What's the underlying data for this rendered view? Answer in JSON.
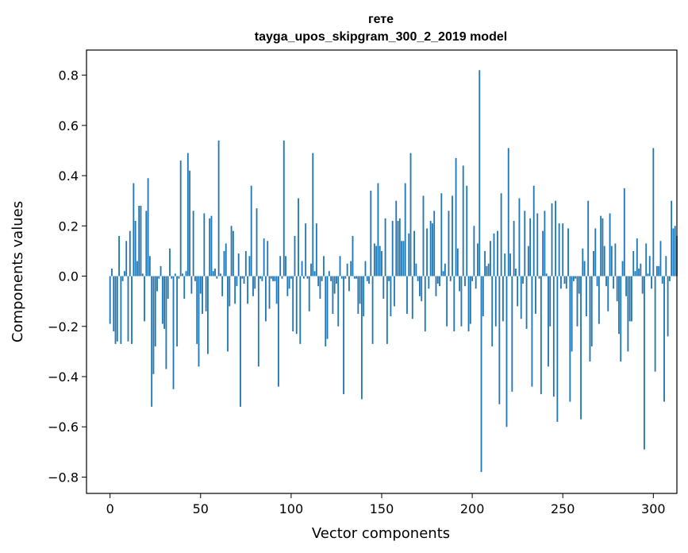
{
  "chart_data": {
    "type": "bar",
    "title": "гете",
    "subtitle": "tayga_upos_skipgram_300_2_2019 model",
    "xlabel": "Vector components",
    "ylabel": "Components values",
    "xlim": [
      -13,
      313
    ],
    "ylim": [
      -0.865,
      0.9
    ],
    "xticks": [
      0,
      50,
      100,
      150,
      200,
      250,
      300
    ],
    "yticks": [
      -0.8,
      -0.6,
      -0.4,
      -0.2,
      0.0,
      0.2,
      0.4,
      0.6,
      0.8
    ],
    "ytick_labels": [
      "−0.8",
      "−0.6",
      "−0.4",
      "−0.2",
      "0.0",
      "0.2",
      "0.4",
      "0.6",
      "0.8"
    ],
    "xtick_labels": [
      "0",
      "50",
      "100",
      "150",
      "200",
      "250",
      "300"
    ],
    "bar_color": "#1f77b4",
    "values": [
      -0.19,
      0.03,
      -0.22,
      -0.27,
      -0.26,
      0.16,
      -0.27,
      -0.02,
      0.02,
      0.14,
      -0.26,
      0.18,
      -0.27,
      0.37,
      0.22,
      0.06,
      0.28,
      0.28,
      0.01,
      -0.18,
      0.26,
      0.39,
      0.08,
      -0.52,
      -0.39,
      -0.28,
      -0.06,
      -0.01,
      0.04,
      -0.19,
      -0.21,
      -0.37,
      -0.09,
      0.11,
      -0.01,
      -0.45,
      0.01,
      -0.28,
      -0.01,
      0.46,
      0.01,
      -0.09,
      0.02,
      0.49,
      0.42,
      -0.07,
      0.26,
      -0.02,
      -0.27,
      -0.36,
      -0.07,
      -0.15,
      0.25,
      -0.14,
      -0.31,
      0.23,
      0.24,
      0.02,
      0.03,
      -0.01,
      0.54,
      0.01,
      -0.08,
      0.1,
      0.13,
      -0.3,
      -0.12,
      0.2,
      0.18,
      -0.11,
      -0.04,
      0.09,
      -0.52,
      -0.01,
      -0.03,
      0.1,
      -0.11,
      0.08,
      0.36,
      -0.08,
      -0.05,
      0.27,
      -0.36,
      -0.01,
      -0.02,
      0.15,
      -0.18,
      0.14,
      -0.13,
      -0.01,
      -0.02,
      -0.02,
      -0.11,
      -0.44,
      0.08,
      -0.01,
      0.54,
      0.08,
      -0.08,
      -0.05,
      -0.01,
      -0.22,
      0.16,
      -0.23,
      0.31,
      -0.27,
      0.06,
      -0.01,
      0.21,
      -0.01,
      -0.14,
      0.05,
      0.49,
      0.02,
      0.21,
      -0.04,
      -0.09,
      -0.02,
      0.08,
      -0.28,
      -0.25,
      0.02,
      -0.02,
      -0.15,
      -0.07,
      -0.03,
      -0.2,
      0.08,
      -0.01,
      -0.47,
      -0.01,
      0.05,
      -0.06,
      0.06,
      0.16,
      -0.01,
      -0.01,
      -0.15,
      -0.11,
      -0.49,
      -0.16,
      0.06,
      -0.02,
      -0.03,
      0.34,
      -0.27,
      0.13,
      0.12,
      0.37,
      0.12,
      0.1,
      -0.09,
      0.23,
      -0.27,
      -0.02,
      -0.16,
      0.22,
      -0.12,
      0.3,
      0.22,
      0.23,
      0.14,
      0.14,
      0.37,
      -0.15,
      0.17,
      0.49,
      -0.17,
      0.18,
      0.05,
      -0.02,
      -0.08,
      -0.1,
      0.32,
      -0.22,
      0.19,
      -0.05,
      0.22,
      0.21,
      0.26,
      -0.08,
      -0.03,
      -0.04,
      0.33,
      0.02,
      0.05,
      -0.2,
      0.26,
      -0.02,
      0.32,
      -0.22,
      0.47,
      0.11,
      -0.06,
      -0.2,
      0.44,
      -0.04,
      0.36,
      -0.22,
      -0.19,
      -0.02,
      0.2,
      -0.05,
      0.13,
      0.82,
      -0.78,
      -0.16,
      0.1,
      0.04,
      0.05,
      0.14,
      -0.28,
      0.17,
      -0.2,
      0.18,
      -0.51,
      0.33,
      -0.18,
      0.09,
      -0.6,
      0.51,
      0.09,
      -0.46,
      0.22,
      0.03,
      -0.12,
      0.31,
      -0.17,
      -0.03,
      0.26,
      -0.21,
      0.12,
      0.23,
      -0.44,
      0.36,
      -0.15,
      0.25,
      -0.01,
      -0.47,
      0.18,
      0.26,
      0.01,
      -0.36,
      -0.2,
      0.29,
      -0.48,
      0.3,
      -0.58,
      0.21,
      -0.05,
      0.21,
      -0.03,
      -0.05,
      0.19,
      -0.5,
      -0.3,
      -0.02,
      -0.01,
      -0.2,
      -0.07,
      -0.57,
      0.11,
      0.06,
      -0.16,
      0.3,
      -0.34,
      -0.28,
      0.1,
      0.19,
      -0.04,
      -0.19,
      0.24,
      0.23,
      0.12,
      -0.04,
      -0.14,
      0.25,
      0.12,
      -0.05,
      0.13,
      -0.1,
      -0.23,
      -0.34,
      0.06,
      0.35,
      -0.08,
      -0.3,
      -0.18,
      -0.18,
      0.1,
      0.02,
      0.15,
      0.03,
      0.05,
      -0.07,
      -0.69,
      0.13,
      0.01,
      0.08,
      -0.05,
      0.51,
      -0.38,
      0.04,
      0.04,
      0.14,
      -0.03,
      -0.5,
      0.08,
      -0.24,
      -0.02,
      0.3,
      0.19,
      0.2,
      0.16
    ]
  }
}
